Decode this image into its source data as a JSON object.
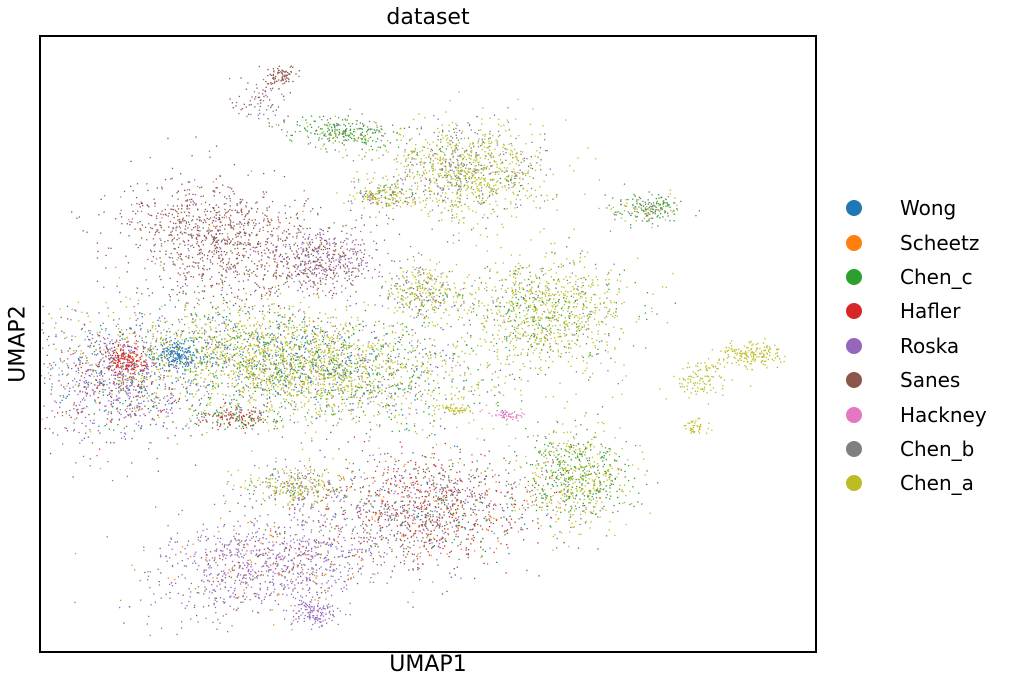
{
  "chart_data": {
    "type": "scatter",
    "title": "dataset",
    "xlabel": "UMAP1",
    "ylabel": "UMAP2",
    "xlim": [
      0,
      100
    ],
    "ylim": [
      0,
      100
    ],
    "grid": false,
    "legend_position": "right",
    "series": [
      {
        "name": "Wong",
        "color": "#1f77b4"
      },
      {
        "name": "Scheetz",
        "color": "#ff7f0e"
      },
      {
        "name": "Chen_c",
        "color": "#2ca02c"
      },
      {
        "name": "Hafler",
        "color": "#d62728"
      },
      {
        "name": "Roska",
        "color": "#9467bd"
      },
      {
        "name": "Sanes",
        "color": "#8c564b"
      },
      {
        "name": "Hackney",
        "color": "#e377c2"
      },
      {
        "name": "Chen_b",
        "color": "#7f7f7f"
      },
      {
        "name": "Chen_a",
        "color": "#bcbd22"
      }
    ],
    "clusters": [
      {
        "x": 32,
        "y": 47,
        "sx": 11.5,
        "sy": 4.5,
        "rot": -8,
        "n": 3200,
        "mix": {
          "Chen_a": 0.55,
          "Chen_c": 0.17,
          "Wong": 0.12,
          "Roska": 0.08,
          "Chen_b": 0.08
        }
      },
      {
        "x": 10,
        "y": 44,
        "sx": 5,
        "sy": 5,
        "rot": 0,
        "n": 900,
        "mix": {
          "Roska": 0.5,
          "Sanes": 0.18,
          "Wong": 0.14,
          "Hafler": 0.08,
          "Chen_c": 0.05,
          "Chen_a": 0.05
        }
      },
      {
        "x": 11,
        "y": 47.5,
        "sx": 1.3,
        "sy": 1.1,
        "rot": 0,
        "n": 160,
        "mix": {
          "Hafler": 1.0
        }
      },
      {
        "x": 18,
        "y": 48.5,
        "sx": 1.5,
        "sy": 1.1,
        "rot": 0,
        "n": 150,
        "mix": {
          "Wong": 1.0
        }
      },
      {
        "x": 24,
        "y": 67,
        "sx": 7,
        "sy": 4.5,
        "rot": -15,
        "n": 1100,
        "mix": {
          "Sanes": 0.82,
          "Roska": 0.1,
          "Chen_b": 0.04,
          "Scheetz": 0.04
        }
      },
      {
        "x": 37,
        "y": 64,
        "sx": 3.2,
        "sy": 2.5,
        "rot": 0,
        "n": 420,
        "mix": {
          "Sanes": 0.5,
          "Roska": 0.45,
          "Chen_b": 0.05
        }
      },
      {
        "x": 54,
        "y": 78.5,
        "sx": 5.5,
        "sy": 4,
        "rot": 0,
        "n": 1100,
        "mix": {
          "Chen_a": 0.62,
          "Chen_b": 0.2,
          "Chen_c": 0.08,
          "Roska": 0.1
        }
      },
      {
        "x": 44,
        "y": 74,
        "sx": 2.2,
        "sy": 1,
        "rot": 0,
        "n": 160,
        "mix": {
          "Chen_a": 0.6,
          "Roska": 0.25,
          "Chen_c": 0.15
        }
      },
      {
        "x": 39,
        "y": 84.5,
        "sx": 3.3,
        "sy": 1.2,
        "rot": -5,
        "n": 260,
        "mix": {
          "Chen_c": 0.6,
          "Chen_b": 0.25,
          "Chen_a": 0.15
        }
      },
      {
        "x": 31,
        "y": 93.5,
        "sx": 1,
        "sy": 0.9,
        "rot": 0,
        "n": 80,
        "mix": {
          "Sanes": 1.0
        }
      },
      {
        "x": 28.5,
        "y": 89.5,
        "sx": 1.8,
        "sy": 1.8,
        "rot": 30,
        "n": 80,
        "mix": {
          "Sanes": 0.5,
          "Roska": 0.3,
          "Chen_b": 0.2
        }
      },
      {
        "x": 78,
        "y": 72,
        "sx": 2.2,
        "sy": 1.2,
        "rot": 0,
        "n": 200,
        "mix": {
          "Chen_c": 0.45,
          "Chen_b": 0.35,
          "Chen_a": 0.2
        }
      },
      {
        "x": 65,
        "y": 55,
        "sx": 5.5,
        "sy": 4.5,
        "rot": 0,
        "n": 1000,
        "mix": {
          "Chen_a": 0.68,
          "Chen_c": 0.18,
          "Chen_b": 0.1,
          "Roska": 0.04
        }
      },
      {
        "x": 49,
        "y": 58.5,
        "sx": 2.5,
        "sy": 2.4,
        "rot": 0,
        "n": 320,
        "mix": {
          "Chen_a": 0.55,
          "Roska": 0.25,
          "Chen_c": 0.1,
          "Chen_b": 0.1
        }
      },
      {
        "x": 91.5,
        "y": 48.5,
        "sx": 2,
        "sy": 1,
        "rot": 0,
        "n": 170,
        "mix": {
          "Chen_a": 1.0
        }
      },
      {
        "x": 85,
        "y": 44.5,
        "sx": 1.8,
        "sy": 1.5,
        "rot": 45,
        "n": 110,
        "mix": {
          "Chen_a": 1.0
        }
      },
      {
        "x": 84.5,
        "y": 36.5,
        "sx": 0.8,
        "sy": 0.7,
        "rot": 0,
        "n": 40,
        "mix": {
          "Chen_a": 1.0
        }
      },
      {
        "x": 53.5,
        "y": 39.5,
        "sx": 1.3,
        "sy": 0.3,
        "rot": -10,
        "n": 50,
        "mix": {
          "Chen_a": 1.0
        }
      },
      {
        "x": 60.5,
        "y": 38.5,
        "sx": 1.3,
        "sy": 0.3,
        "rot": -10,
        "n": 50,
        "mix": {
          "Hackney": 1.0
        }
      },
      {
        "x": 50,
        "y": 23.5,
        "sx": 7,
        "sy": 4.5,
        "rot": 0,
        "n": 1200,
        "mix": {
          "Sanes": 0.45,
          "Hafler": 0.18,
          "Roska": 0.15,
          "Scheetz": 0.08,
          "Wong": 0.07,
          "Chen_c": 0.07
        }
      },
      {
        "x": 69,
        "y": 28.5,
        "sx": 3.5,
        "sy": 4,
        "rot": 0,
        "n": 720,
        "mix": {
          "Chen_a": 0.55,
          "Chen_c": 0.35,
          "Chen_b": 0.1
        }
      },
      {
        "x": 33,
        "y": 27,
        "sx": 3.5,
        "sy": 1.5,
        "rot": 0,
        "n": 320,
        "mix": {
          "Chen_a": 0.58,
          "Chen_b": 0.17,
          "Roska": 0.15,
          "Chen_c": 0.1
        }
      },
      {
        "x": 30,
        "y": 15,
        "sx": 8,
        "sy": 4,
        "rot": 10,
        "n": 1100,
        "mix": {
          "Roska": 0.68,
          "Sanes": 0.12,
          "Scheetz": 0.1,
          "Chen_b": 0.1
        }
      },
      {
        "x": 35.5,
        "y": 6.5,
        "sx": 1.5,
        "sy": 1,
        "rot": 0,
        "n": 130,
        "mix": {
          "Roska": 1.0
        }
      },
      {
        "x": 25,
        "y": 38,
        "sx": 2.5,
        "sy": 1,
        "rot": 0,
        "n": 180,
        "mix": {
          "Sanes": 0.4,
          "Hafler": 0.3,
          "Chen_c": 0.3
        }
      }
    ]
  },
  "legend": {
    "items": [
      {
        "label": "Wong",
        "color": "#1f77b4"
      },
      {
        "label": "Scheetz",
        "color": "#ff7f0e"
      },
      {
        "label": "Chen_c",
        "color": "#2ca02c"
      },
      {
        "label": "Hafler",
        "color": "#d62728"
      },
      {
        "label": "Roska",
        "color": "#9467bd"
      },
      {
        "label": "Sanes",
        "color": "#8c564b"
      },
      {
        "label": "Hackney",
        "color": "#e377c2"
      },
      {
        "label": "Chen_b",
        "color": "#7f7f7f"
      },
      {
        "label": "Chen_a",
        "color": "#bcbd22"
      }
    ]
  }
}
